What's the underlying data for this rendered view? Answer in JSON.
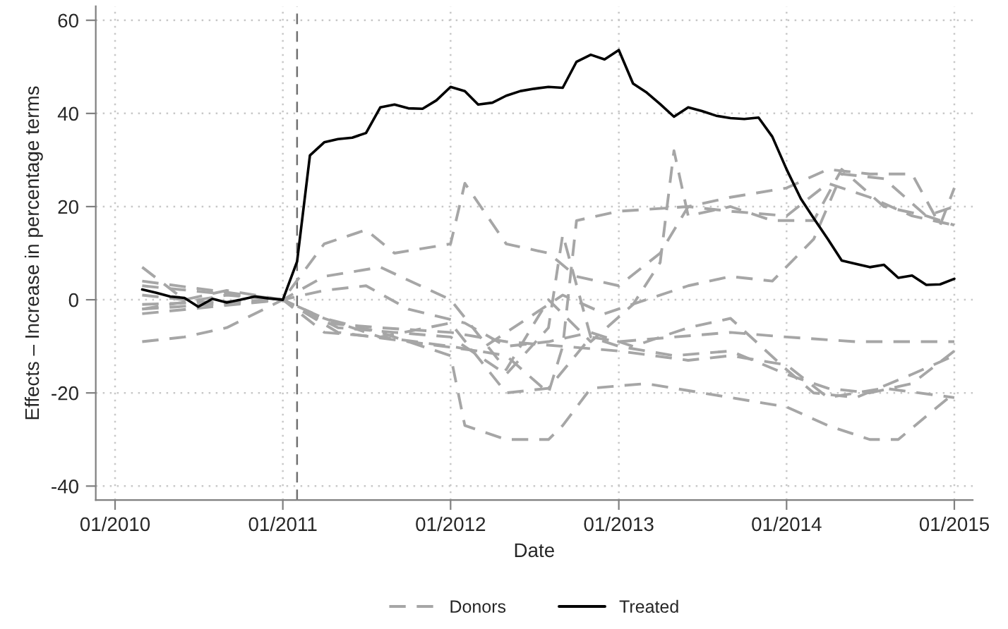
{
  "chart_data": {
    "type": "line",
    "xlabel": "Date",
    "ylabel": "Effects – Increase in percentage terms",
    "xlim": [
      "2009-11-20",
      "2015-02-10"
    ],
    "ylim": [
      -43,
      63
    ],
    "xticks": [
      {
        "value": "2010-01",
        "label": "01/2010"
      },
      {
        "value": "2011-01",
        "label": "01/2011"
      },
      {
        "value": "2012-01",
        "label": "01/2012"
      },
      {
        "value": "2013-01",
        "label": "01/2013"
      },
      {
        "value": "2014-01",
        "label": "01/2014"
      },
      {
        "value": "2015-01",
        "label": "01/2015"
      }
    ],
    "yticks": [
      -40,
      -20,
      0,
      20,
      40,
      60
    ],
    "grid": true,
    "legend": "bottom",
    "ref_lines": [
      {
        "axis": "x",
        "value": "2011-02",
        "label": null,
        "color": "#707070",
        "line_style": "dashed"
      }
    ],
    "series": [
      {
        "name": "Donors",
        "color": "#a6a6a6",
        "line_style": "dashed",
        "x": [
          "2010-03",
          "2010-06",
          "2010-09",
          "2011-01",
          "2011-04",
          "2011-07",
          "2011-09",
          "2012-01",
          "2012-02",
          "2012-05",
          "2012-08",
          "2012-10",
          "2013-01",
          "2013-04",
          "2013-06",
          "2013-09",
          "2014-01",
          "2014-04",
          "2014-07",
          "2014-10",
          "2014-12",
          "2015-01"
        ],
        "values": [
          7,
          0,
          2,
          0,
          12,
          15,
          10,
          12,
          25,
          12,
          10,
          5,
          3,
          10,
          20,
          22,
          24,
          28,
          27,
          27,
          16,
          24
        ]
      },
      {
        "color": "#a6a6a6",
        "line_style": "dashed",
        "x": [
          "2010-03",
          "2010-09",
          "2011-01",
          "2011-04",
          "2011-08",
          "2012-01",
          "2012-05",
          "2012-08",
          "2012-11",
          "2013-02",
          "2013-04",
          "2013-05",
          "2013-06",
          "2013-09",
          "2013-12",
          "2014-03",
          "2014-05",
          "2014-08",
          "2014-11",
          "2015-01"
        ],
        "values": [
          -2,
          1,
          0,
          5,
          7,
          0,
          -15,
          0,
          -9,
          -1,
          8,
          32,
          18,
          20,
          17,
          17,
          28,
          20,
          18,
          16
        ]
      },
      {
        "color": "#a6a6a6",
        "line_style": "dashed",
        "x": [
          "2010-03",
          "2010-06",
          "2010-09",
          "2011-01",
          "2011-04",
          "2011-08",
          "2012-01",
          "2012-05",
          "2012-08",
          "2012-09",
          "2012-10",
          "2013-01",
          "2013-06",
          "2013-09",
          "2014-01",
          "2014-04",
          "2014-07",
          "2014-10",
          "2015-01"
        ],
        "values": [
          -9,
          -8,
          -6,
          0,
          -4,
          -8,
          -10,
          -12,
          -20,
          -10,
          17,
          19,
          20,
          19,
          18,
          25,
          22,
          18,
          16
        ]
      },
      {
        "color": "#a6a6a6",
        "line_style": "dashed",
        "x": [
          "2010-03",
          "2010-09",
          "2011-01",
          "2011-04",
          "2011-08",
          "2012-01",
          "2012-02",
          "2012-05",
          "2012-08",
          "2012-09",
          "2012-11",
          "2013-03",
          "2013-09",
          "2014-01",
          "2014-04",
          "2014-07",
          "2014-09",
          "2015-01"
        ],
        "values": [
          1,
          -1,
          0,
          -4,
          -7,
          -12,
          -27,
          -30,
          -30,
          -27,
          -19,
          -18,
          -21,
          -23,
          -27,
          -30,
          -30,
          -20
        ]
      },
      {
        "color": "#a6a6a6",
        "line_style": "dashed",
        "x": [
          "2010-03",
          "2011-01",
          "2011-05",
          "2011-09",
          "2012-01",
          "2012-05",
          "2012-08",
          "2012-09",
          "2012-11",
          "2013-01",
          "2013-05",
          "2013-09",
          "2014-01",
          "2014-04",
          "2014-07",
          "2014-10",
          "2015-01"
        ],
        "values": [
          3,
          0,
          -6,
          -7,
          -8,
          -16,
          -6,
          14,
          -8,
          -10,
          -12,
          -11,
          -16,
          -19,
          -20,
          -18,
          -11
        ]
      },
      {
        "color": "#a6a6a6",
        "line_style": "dashed",
        "x": [
          "2010-03",
          "2011-01",
          "2011-04",
          "2011-08",
          "2012-01",
          "2012-05",
          "2012-08",
          "2012-11",
          "2013-01",
          "2013-05",
          "2013-09",
          "2014-01",
          "2014-06",
          "2014-10",
          "2015-01"
        ],
        "values": [
          -1,
          0,
          -7,
          -8,
          -5,
          -20,
          -19,
          -8,
          -9,
          -8,
          -7,
          -8,
          -9,
          -9,
          -9
        ]
      },
      {
        "color": "#a6a6a6",
        "line_style": "dashed",
        "x": [
          "2010-03",
          "2011-01",
          "2011-05",
          "2011-10",
          "2012-03",
          "2012-06",
          "2012-09",
          "2012-12",
          "2013-03",
          "2013-06",
          "2013-09",
          "2013-12",
          "2014-03",
          "2014-05",
          "2014-08",
          "2014-11",
          "2015-01"
        ],
        "values": [
          -3,
          0,
          -7,
          -9,
          -11,
          -5,
          1,
          -3,
          0,
          3,
          5,
          4,
          13,
          27,
          26,
          18,
          20
        ]
      },
      {
        "color": "#a6a6a6",
        "line_style": "dashed",
        "x": [
          "2010-03",
          "2011-01",
          "2011-04",
          "2011-07",
          "2011-10",
          "2012-02",
          "2012-05",
          "2012-08",
          "2012-11",
          "2013-02",
          "2013-06",
          "2013-09",
          "2014-01",
          "2014-03",
          "2014-06",
          "2014-10",
          "2015-01"
        ],
        "values": [
          4,
          0,
          2,
          3,
          -2,
          -5,
          -10,
          -9,
          -7,
          -10,
          -6,
          -4,
          -15,
          -20,
          -21,
          -16,
          -12
        ]
      },
      {
        "color": "#a6a6a6",
        "line_style": "dashed",
        "x": [
          "2010-03",
          "2011-01",
          "2011-04",
          "2011-08",
          "2012-01",
          "2012-05",
          "2012-09",
          "2013-01",
          "2013-06",
          "2013-09",
          "2014-01",
          "2014-04",
          "2014-08",
          "2015-01"
        ],
        "values": [
          -2,
          0,
          -5,
          -6,
          -7,
          -9,
          -10,
          -11,
          -13,
          -12,
          -14,
          -21,
          -19,
          -21
        ]
      },
      {
        "name": "Treated",
        "color": "#000000",
        "line_style": "solid",
        "x": [
          "2010-03",
          "2010-04",
          "2010-05",
          "2010-06",
          "2010-07",
          "2010-08",
          "2010-09",
          "2010-10",
          "2010-11",
          "2010-12",
          "2011-01",
          "2011-02",
          "2011-03",
          "2011-04",
          "2011-05",
          "2011-06",
          "2011-07",
          "2011-08",
          "2011-09",
          "2011-10",
          "2011-11",
          "2011-12",
          "2012-01",
          "2012-02",
          "2012-03",
          "2012-04",
          "2012-05",
          "2012-06",
          "2012-07",
          "2012-08",
          "2012-09",
          "2012-10",
          "2012-11",
          "2012-12",
          "2013-01",
          "2013-02",
          "2013-03",
          "2013-04",
          "2013-05",
          "2013-06",
          "2013-07",
          "2013-08",
          "2013-09",
          "2013-10",
          "2013-11",
          "2013-12",
          "2014-01",
          "2014-02",
          "2014-03",
          "2014-04",
          "2014-05",
          "2014-06",
          "2014-07",
          "2014-08",
          "2014-09",
          "2014-10",
          "2014-11",
          "2014-12",
          "2015-01"
        ],
        "values": [
          2.2,
          1.5,
          0.7,
          0.4,
          -1.5,
          0.2,
          -0.6,
          0,
          0.7,
          0.3,
          0,
          8.2,
          31,
          33.8,
          34.5,
          34.8,
          35.8,
          41.3,
          41.9,
          41.1,
          41,
          42.8,
          45.7,
          44.8,
          41.9,
          42.3,
          43.8,
          44.8,
          45.3,
          45.7,
          45.5,
          51.1,
          52.6,
          51.6,
          53.6,
          46.4,
          44.6,
          42,
          39.3,
          41.3,
          40.5,
          39.5,
          39,
          38.8,
          39.1,
          35,
          28,
          21.7,
          17.5,
          13,
          8.4,
          7.7,
          7,
          7.5,
          4.7,
          5.2,
          3.2,
          3.3,
          4.5
        ]
      }
    ]
  }
}
